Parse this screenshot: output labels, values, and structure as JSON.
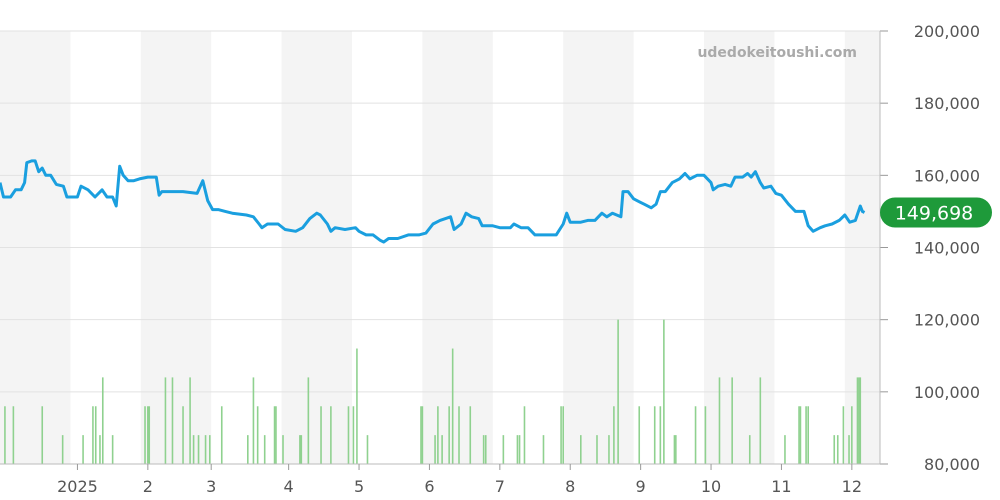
{
  "watermark": "udedokeitoushi.com",
  "chart_data": {
    "type": "line",
    "xlabel": "",
    "ylabel": "",
    "ylim": [
      80000,
      200000
    ],
    "y_ticks": [
      "200,000",
      "180,000",
      "160,000",
      "140,000",
      "120,000",
      "100,000",
      "80,000"
    ],
    "y_tick_values": [
      200000,
      180000,
      160000,
      140000,
      120000,
      100000,
      80000
    ],
    "x_ticks": [
      "2025",
      "2",
      "3",
      "4",
      "5",
      "6",
      "7",
      "8",
      "9",
      "10",
      "11",
      "12"
    ],
    "x_tick_positions": [
      2.0,
      3.0,
      3.9,
      5.0,
      6.0,
      7.0,
      8.0,
      9.0,
      10.0,
      11.0,
      12.0,
      13.0
    ],
    "xlim": [
      0.9,
      13.4
    ],
    "month_bands": [
      [
        0.9,
        1.9
      ],
      [
        2.9,
        3.9
      ],
      [
        4.9,
        5.9
      ],
      [
        6.9,
        7.9
      ],
      [
        8.9,
        9.9
      ],
      [
        10.9,
        11.9
      ],
      [
        12.9,
        13.4
      ]
    ],
    "last_value_label": "149,698",
    "colors": {
      "price_line": "#1a9fdf",
      "volume_bars": "#8fd18f",
      "badge": "#1e9a3a",
      "band": "#f4f4f4",
      "grid": "#e2e2e2"
    },
    "series": [
      {
        "role": "price",
        "points": [
          [
            0.9,
            158000
          ],
          [
            0.95,
            154000
          ],
          [
            1.05,
            154000
          ],
          [
            1.12,
            156000
          ],
          [
            1.2,
            156000
          ],
          [
            1.25,
            158000
          ],
          [
            1.28,
            163500
          ],
          [
            1.35,
            164000
          ],
          [
            1.4,
            164000
          ],
          [
            1.45,
            161000
          ],
          [
            1.5,
            162000
          ],
          [
            1.55,
            160000
          ],
          [
            1.62,
            160000
          ],
          [
            1.7,
            157500
          ],
          [
            1.8,
            157000
          ],
          [
            1.85,
            154000
          ],
          [
            2.0,
            154000
          ],
          [
            2.05,
            157000
          ],
          [
            2.15,
            156000
          ],
          [
            2.25,
            154000
          ],
          [
            2.35,
            156000
          ],
          [
            2.42,
            154000
          ],
          [
            2.5,
            154000
          ],
          [
            2.55,
            151500
          ],
          [
            2.6,
            162500
          ],
          [
            2.65,
            160000
          ],
          [
            2.72,
            158500
          ],
          [
            2.8,
            158500
          ],
          [
            2.88,
            159000
          ],
          [
            3.0,
            159500
          ],
          [
            3.12,
            159500
          ],
          [
            3.16,
            154500
          ],
          [
            3.2,
            155500
          ],
          [
            3.3,
            155500
          ],
          [
            3.5,
            155500
          ],
          [
            3.7,
            155000
          ],
          [
            3.78,
            158500
          ],
          [
            3.85,
            153000
          ],
          [
            3.92,
            150500
          ],
          [
            4.0,
            150500
          ],
          [
            4.1,
            150000
          ],
          [
            4.2,
            149500
          ],
          [
            4.4,
            149000
          ],
          [
            4.5,
            148500
          ],
          [
            4.58,
            146500
          ],
          [
            4.62,
            145500
          ],
          [
            4.7,
            146500
          ],
          [
            4.85,
            146500
          ],
          [
            4.95,
            145000
          ],
          [
            5.1,
            144500
          ],
          [
            5.2,
            145500
          ],
          [
            5.3,
            148000
          ],
          [
            5.4,
            149500
          ],
          [
            5.45,
            149000
          ],
          [
            5.55,
            146500
          ],
          [
            5.6,
            144500
          ],
          [
            5.66,
            145500
          ],
          [
            5.8,
            145000
          ],
          [
            5.95,
            145500
          ],
          [
            6.0,
            144500
          ],
          [
            6.1,
            143500
          ],
          [
            6.2,
            143500
          ],
          [
            6.3,
            142000
          ],
          [
            6.35,
            141500
          ],
          [
            6.42,
            142500
          ],
          [
            6.55,
            142500
          ],
          [
            6.7,
            143500
          ],
          [
            6.85,
            143500
          ],
          [
            6.95,
            144000
          ],
          [
            7.05,
            146500
          ],
          [
            7.15,
            147500
          ],
          [
            7.3,
            148500
          ],
          [
            7.35,
            145000
          ],
          [
            7.45,
            146500
          ],
          [
            7.52,
            149500
          ],
          [
            7.6,
            148500
          ],
          [
            7.7,
            148000
          ],
          [
            7.75,
            146000
          ],
          [
            7.9,
            146000
          ],
          [
            8.0,
            145500
          ],
          [
            8.15,
            145500
          ],
          [
            8.2,
            146500
          ],
          [
            8.3,
            145500
          ],
          [
            8.4,
            145500
          ],
          [
            8.5,
            143500
          ],
          [
            8.6,
            143500
          ],
          [
            8.8,
            143500
          ],
          [
            8.9,
            146500
          ],
          [
            8.95,
            149500
          ],
          [
            9.0,
            147000
          ],
          [
            9.15,
            147000
          ],
          [
            9.25,
            147500
          ],
          [
            9.35,
            147500
          ],
          [
            9.45,
            149500
          ],
          [
            9.52,
            148500
          ],
          [
            9.6,
            149500
          ],
          [
            9.72,
            148500
          ],
          [
            9.75,
            155500
          ],
          [
            9.82,
            155500
          ],
          [
            9.9,
            153500
          ],
          [
            10.0,
            152500
          ],
          [
            10.05,
            152000
          ],
          [
            10.15,
            151000
          ],
          [
            10.22,
            152000
          ],
          [
            10.28,
            155500
          ],
          [
            10.35,
            155500
          ],
          [
            10.45,
            158000
          ],
          [
            10.55,
            159000
          ],
          [
            10.63,
            160500
          ],
          [
            10.7,
            159000
          ],
          [
            10.8,
            160000
          ],
          [
            10.9,
            160000
          ],
          [
            11.0,
            158000
          ],
          [
            11.03,
            156000
          ],
          [
            11.1,
            157000
          ],
          [
            11.2,
            157500
          ],
          [
            11.28,
            157000
          ],
          [
            11.34,
            159500
          ],
          [
            11.45,
            159500
          ],
          [
            11.52,
            160500
          ],
          [
            11.57,
            159500
          ],
          [
            11.63,
            161000
          ],
          [
            11.7,
            158000
          ],
          [
            11.75,
            156500
          ],
          [
            11.85,
            157000
          ],
          [
            11.92,
            155000
          ],
          [
            12.0,
            154500
          ],
          [
            12.1,
            152000
          ],
          [
            12.2,
            150000
          ],
          [
            12.32,
            150000
          ],
          [
            12.38,
            146000
          ],
          [
            12.45,
            144500
          ],
          [
            12.55,
            145500
          ],
          [
            12.62,
            146000
          ],
          [
            12.72,
            146500
          ],
          [
            12.82,
            147500
          ],
          [
            12.9,
            149000
          ],
          [
            12.97,
            147000
          ],
          [
            13.05,
            147500
          ],
          [
            13.12,
            151500
          ],
          [
            13.15,
            150000
          ],
          [
            13.18,
            149698
          ]
        ]
      },
      {
        "role": "volume",
        "bars": [
          [
            0.97,
            96000
          ],
          [
            1.09,
            96000
          ],
          [
            1.5,
            96000
          ],
          [
            1.79,
            88000
          ],
          [
            2.08,
            88000
          ],
          [
            2.22,
            96000
          ],
          [
            2.26,
            96000
          ],
          [
            2.32,
            88000
          ],
          [
            2.36,
            104000
          ],
          [
            2.5,
            88000
          ],
          [
            2.96,
            96000
          ],
          [
            3.0,
            96000
          ],
          [
            3.02,
            96000
          ],
          [
            3.25,
            104000
          ],
          [
            3.35,
            104000
          ],
          [
            3.5,
            96000
          ],
          [
            3.6,
            104000
          ],
          [
            3.65,
            88000
          ],
          [
            3.72,
            88000
          ],
          [
            3.82,
            88000
          ],
          [
            3.88,
            88000
          ],
          [
            4.05,
            96000
          ],
          [
            4.42,
            88000
          ],
          [
            4.5,
            104000
          ],
          [
            4.56,
            96000
          ],
          [
            4.66,
            88000
          ],
          [
            4.8,
            96000
          ],
          [
            4.82,
            96000
          ],
          [
            4.92,
            88000
          ],
          [
            5.16,
            88000
          ],
          [
            5.18,
            88000
          ],
          [
            5.28,
            104000
          ],
          [
            5.46,
            96000
          ],
          [
            5.6,
            96000
          ],
          [
            5.85,
            96000
          ],
          [
            5.92,
            96000
          ],
          [
            5.97,
            112000
          ],
          [
            6.12,
            88000
          ],
          [
            6.88,
            96000
          ],
          [
            6.9,
            96000
          ],
          [
            7.08,
            88000
          ],
          [
            7.12,
            96000
          ],
          [
            7.18,
            88000
          ],
          [
            7.28,
            96000
          ],
          [
            7.33,
            112000
          ],
          [
            7.42,
            96000
          ],
          [
            7.58,
            96000
          ],
          [
            7.77,
            88000
          ],
          [
            7.8,
            88000
          ],
          [
            8.05,
            88000
          ],
          [
            8.25,
            88000
          ],
          [
            8.28,
            88000
          ],
          [
            8.35,
            96000
          ],
          [
            8.62,
            88000
          ],
          [
            8.87,
            96000
          ],
          [
            8.9,
            96000
          ],
          [
            9.15,
            88000
          ],
          [
            9.38,
            88000
          ],
          [
            9.55,
            88000
          ],
          [
            9.62,
            96000
          ],
          [
            9.68,
            120000
          ],
          [
            9.98,
            96000
          ],
          [
            10.2,
            96000
          ],
          [
            10.28,
            96000
          ],
          [
            10.33,
            120000
          ],
          [
            10.48,
            88000
          ],
          [
            10.5,
            88000
          ],
          [
            10.78,
            96000
          ],
          [
            10.92,
            96000
          ],
          [
            11.12,
            104000
          ],
          [
            11.3,
            104000
          ],
          [
            11.55,
            88000
          ],
          [
            11.7,
            104000
          ],
          [
            12.05,
            88000
          ],
          [
            12.25,
            96000
          ],
          [
            12.27,
            96000
          ],
          [
            12.35,
            96000
          ],
          [
            12.38,
            96000
          ],
          [
            12.75,
            88000
          ],
          [
            12.8,
            88000
          ],
          [
            12.88,
            96000
          ],
          [
            12.96,
            88000
          ],
          [
            13.0,
            96000
          ],
          [
            13.08,
            104000
          ],
          [
            13.1,
            104000
          ],
          [
            13.12,
            104000
          ]
        ]
      }
    ]
  }
}
